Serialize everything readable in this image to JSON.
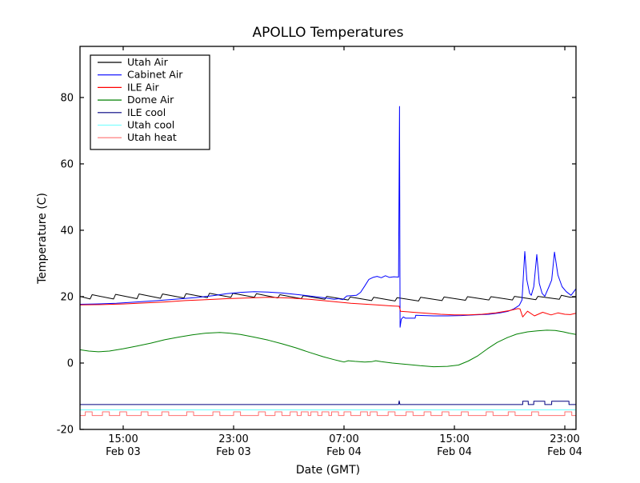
{
  "title": "APOLLO Temperatures",
  "chart_data": {
    "type": "line",
    "title": "APOLLO Temperatures",
    "xlabel": "Date (GMT)",
    "ylabel": "Temperature (C)",
    "x_unit": "hours since Feb 03 00:00 GMT",
    "xlim": [
      11.87,
      47.81
    ],
    "ylim": [
      -20,
      95.4
    ],
    "grid": false,
    "legend_position": "upper left",
    "yticks": [
      -20,
      0,
      20,
      40,
      60,
      80
    ],
    "xticks": [
      {
        "t": 15,
        "time": "15:00",
        "date": "Feb 03"
      },
      {
        "t": 23,
        "time": "23:00",
        "date": "Feb 03"
      },
      {
        "t": 31,
        "time": "07:00",
        "date": "Feb 04"
      },
      {
        "t": 39,
        "time": "15:00",
        "date": "Feb 04"
      },
      {
        "t": 47,
        "time": "23:00",
        "date": "Feb 04"
      }
    ],
    "series": [
      {
        "name": "Utah Air",
        "color": "#000000",
        "width": 1,
        "points": [
          [
            11.87,
            20.1
          ],
          [
            12.6,
            19.3
          ],
          [
            12.75,
            20.6
          ],
          [
            14.3,
            19.3
          ],
          [
            14.45,
            20.7
          ],
          [
            16.0,
            19.4
          ],
          [
            16.15,
            20.8
          ],
          [
            17.7,
            19.5
          ],
          [
            17.85,
            20.8
          ],
          [
            19.4,
            19.6
          ],
          [
            19.55,
            20.9
          ],
          [
            21.1,
            19.7
          ],
          [
            21.25,
            21.0
          ],
          [
            22.8,
            19.8
          ],
          [
            22.95,
            21.0
          ],
          [
            24.5,
            19.8
          ],
          [
            24.65,
            20.9
          ],
          [
            26.2,
            19.6
          ],
          [
            26.35,
            20.6
          ],
          [
            27.9,
            19.4
          ],
          [
            28.05,
            20.3
          ],
          [
            29.6,
            19.2
          ],
          [
            29.75,
            20.1
          ],
          [
            31.3,
            19.0
          ],
          [
            31.45,
            19.9
          ],
          [
            33.0,
            18.8
          ],
          [
            33.15,
            19.8
          ],
          [
            34.7,
            18.7
          ],
          [
            34.85,
            19.7
          ],
          [
            36.4,
            18.7
          ],
          [
            36.55,
            19.8
          ],
          [
            38.1,
            18.8
          ],
          [
            38.25,
            19.9
          ],
          [
            39.8,
            18.9
          ],
          [
            39.95,
            20.0
          ],
          [
            41.5,
            19.0
          ],
          [
            41.65,
            20.0
          ],
          [
            43.2,
            19.0
          ],
          [
            43.35,
            20.1
          ],
          [
            44.9,
            19.1
          ],
          [
            45.05,
            20.1
          ],
          [
            46.6,
            19.2
          ],
          [
            46.75,
            20.4
          ],
          [
            47.4,
            19.8
          ],
          [
            47.81,
            19.9
          ]
        ]
      },
      {
        "name": "Cabinet Air",
        "color": "#0000ff",
        "width": 1,
        "points": [
          [
            11.87,
            17.7
          ],
          [
            13.0,
            17.8
          ],
          [
            14.5,
            18.0
          ],
          [
            16.0,
            18.4
          ],
          [
            17.5,
            18.8
          ],
          [
            19.0,
            19.3
          ],
          [
            20.5,
            19.8
          ],
          [
            21.5,
            20.3
          ],
          [
            22.5,
            20.9
          ],
          [
            23.5,
            21.3
          ],
          [
            24.5,
            21.5
          ],
          [
            25.5,
            21.4
          ],
          [
            26.5,
            21.1
          ],
          [
            27.5,
            20.7
          ],
          [
            28.5,
            20.2
          ],
          [
            29.5,
            19.7
          ],
          [
            30.3,
            19.2
          ],
          [
            30.6,
            19.4
          ],
          [
            30.9,
            19.1
          ],
          [
            31.2,
            20.2
          ],
          [
            31.9,
            20.4
          ],
          [
            32.2,
            21.3
          ],
          [
            32.5,
            23.2
          ],
          [
            32.8,
            25.2
          ],
          [
            33.1,
            25.8
          ],
          [
            33.4,
            26.1
          ],
          [
            33.7,
            25.7
          ],
          [
            34.0,
            26.3
          ],
          [
            34.3,
            25.8
          ],
          [
            34.6,
            26.0
          ],
          [
            34.95,
            25.9
          ],
          [
            35.02,
            77.3
          ],
          [
            35.06,
            10.8
          ],
          [
            35.15,
            13.2
          ],
          [
            35.3,
            13.9
          ],
          [
            35.45,
            13.5
          ],
          [
            36.15,
            13.5
          ],
          [
            36.2,
            14.4
          ],
          [
            36.8,
            14.3
          ],
          [
            37.5,
            14.2
          ],
          [
            38.5,
            14.2
          ],
          [
            39.5,
            14.3
          ],
          [
            40.5,
            14.5
          ],
          [
            41.5,
            14.7
          ],
          [
            42.3,
            15.1
          ],
          [
            42.9,
            15.6
          ],
          [
            43.3,
            16.3
          ],
          [
            43.7,
            17.4
          ],
          [
            43.9,
            19.0
          ],
          [
            44.1,
            33.6
          ],
          [
            44.25,
            25.0
          ],
          [
            44.45,
            21.0
          ],
          [
            44.57,
            20.4
          ],
          [
            44.75,
            23.0
          ],
          [
            44.97,
            32.7
          ],
          [
            45.15,
            24.0
          ],
          [
            45.35,
            21.0
          ],
          [
            45.55,
            20.1
          ],
          [
            45.85,
            23.0
          ],
          [
            46.05,
            25.0
          ],
          [
            46.25,
            33.4
          ],
          [
            46.5,
            26.5
          ],
          [
            46.8,
            23.0
          ],
          [
            47.1,
            21.5
          ],
          [
            47.45,
            20.4
          ],
          [
            47.81,
            22.4
          ]
        ]
      },
      {
        "name": "ILE Air",
        "color": "#ff0000",
        "width": 1,
        "points": [
          [
            11.87,
            17.5
          ],
          [
            13.5,
            17.6
          ],
          [
            15.0,
            17.8
          ],
          [
            16.5,
            18.1
          ],
          [
            18.0,
            18.4
          ],
          [
            19.5,
            18.8
          ],
          [
            21.0,
            19.1
          ],
          [
            22.5,
            19.4
          ],
          [
            24.0,
            19.6
          ],
          [
            25.5,
            19.8
          ],
          [
            27.0,
            19.6
          ],
          [
            28.5,
            19.2
          ],
          [
            30.0,
            18.6
          ],
          [
            31.5,
            18.0
          ],
          [
            33.0,
            17.6
          ],
          [
            34.5,
            17.2
          ],
          [
            35.0,
            17.1
          ],
          [
            35.1,
            15.6
          ],
          [
            36.0,
            15.3
          ],
          [
            37.0,
            15.0
          ],
          [
            38.0,
            14.7
          ],
          [
            39.0,
            14.5
          ],
          [
            40.0,
            14.5
          ],
          [
            41.0,
            14.7
          ],
          [
            42.0,
            15.1
          ],
          [
            43.0,
            15.8
          ],
          [
            43.6,
            16.4
          ],
          [
            43.75,
            16.3
          ],
          [
            43.95,
            13.9
          ],
          [
            44.3,
            15.6
          ],
          [
            44.8,
            14.2
          ],
          [
            45.4,
            15.3
          ],
          [
            46.0,
            14.5
          ],
          [
            46.5,
            15.1
          ],
          [
            47.0,
            14.7
          ],
          [
            47.4,
            14.6
          ],
          [
            47.81,
            15.0
          ]
        ]
      },
      {
        "name": "Dome Air",
        "color": "#008000",
        "width": 1,
        "points": [
          [
            11.87,
            4.0
          ],
          [
            12.5,
            3.6
          ],
          [
            13.2,
            3.4
          ],
          [
            14.0,
            3.6
          ],
          [
            15.0,
            4.3
          ],
          [
            16.0,
            5.1
          ],
          [
            17.0,
            6.0
          ],
          [
            18.0,
            7.0
          ],
          [
            19.0,
            7.8
          ],
          [
            20.0,
            8.5
          ],
          [
            21.0,
            9.0
          ],
          [
            22.0,
            9.2
          ],
          [
            22.7,
            9.0
          ],
          [
            23.5,
            8.6
          ],
          [
            24.5,
            7.8
          ],
          [
            25.5,
            6.9
          ],
          [
            26.5,
            5.8
          ],
          [
            27.5,
            4.6
          ],
          [
            28.5,
            3.2
          ],
          [
            29.5,
            1.9
          ],
          [
            30.3,
            1.0
          ],
          [
            30.7,
            0.6
          ],
          [
            31.0,
            0.3
          ],
          [
            31.3,
            0.7
          ],
          [
            31.8,
            0.5
          ],
          [
            32.5,
            0.3
          ],
          [
            33.0,
            0.4
          ],
          [
            33.3,
            0.7
          ],
          [
            33.7,
            0.4
          ],
          [
            34.5,
            0.0
          ],
          [
            35.5,
            -0.4
          ],
          [
            36.5,
            -0.8
          ],
          [
            37.5,
            -1.1
          ],
          [
            38.5,
            -1.0
          ],
          [
            39.3,
            -0.6
          ],
          [
            40.0,
            0.6
          ],
          [
            40.7,
            2.2
          ],
          [
            41.4,
            4.3
          ],
          [
            42.1,
            6.2
          ],
          [
            42.8,
            7.6
          ],
          [
            43.5,
            8.7
          ],
          [
            44.3,
            9.4
          ],
          [
            45.0,
            9.7
          ],
          [
            45.7,
            9.9
          ],
          [
            46.3,
            9.8
          ],
          [
            46.9,
            9.4
          ],
          [
            47.3,
            9.0
          ],
          [
            47.81,
            8.6
          ]
        ]
      },
      {
        "name": "ILE cool",
        "color": "#000080",
        "width": 1,
        "points": [
          [
            11.87,
            -12.5
          ],
          [
            34.95,
            -12.5
          ],
          [
            35.0,
            -11.4
          ],
          [
            35.05,
            -12.5
          ],
          [
            43.95,
            -12.5
          ],
          [
            43.95,
            -11.5
          ],
          [
            44.35,
            -11.5
          ],
          [
            44.35,
            -12.5
          ],
          [
            44.75,
            -12.5
          ],
          [
            44.75,
            -11.5
          ],
          [
            45.55,
            -11.5
          ],
          [
            45.55,
            -12.5
          ],
          [
            46.05,
            -12.5
          ],
          [
            46.05,
            -11.5
          ],
          [
            47.3,
            -11.5
          ],
          [
            47.3,
            -12.5
          ],
          [
            47.81,
            -12.5
          ]
        ]
      },
      {
        "name": "Utah cool",
        "color": "#80ffff",
        "width": 1.2,
        "points": [
          [
            11.87,
            -14.1
          ],
          [
            47.81,
            -14.1
          ]
        ]
      },
      {
        "name": "Utah heat",
        "color": "#ff7070",
        "width": 1,
        "square_wave": {
          "base": -15.8,
          "top": -14.7,
          "pulse_width": 0.5,
          "pulse_starts": [
            12.25,
            13.5,
            14.75,
            16.3,
            17.8,
            19.6,
            21.5,
            23.0,
            24.8,
            26.0,
            27.1,
            27.9,
            28.6,
            29.4,
            30.1,
            31.0,
            32.2,
            32.9,
            34.2,
            35.5,
            36.8,
            38.1,
            39.5,
            41.3,
            42.9,
            44.6,
            47.0
          ]
        }
      }
    ]
  }
}
